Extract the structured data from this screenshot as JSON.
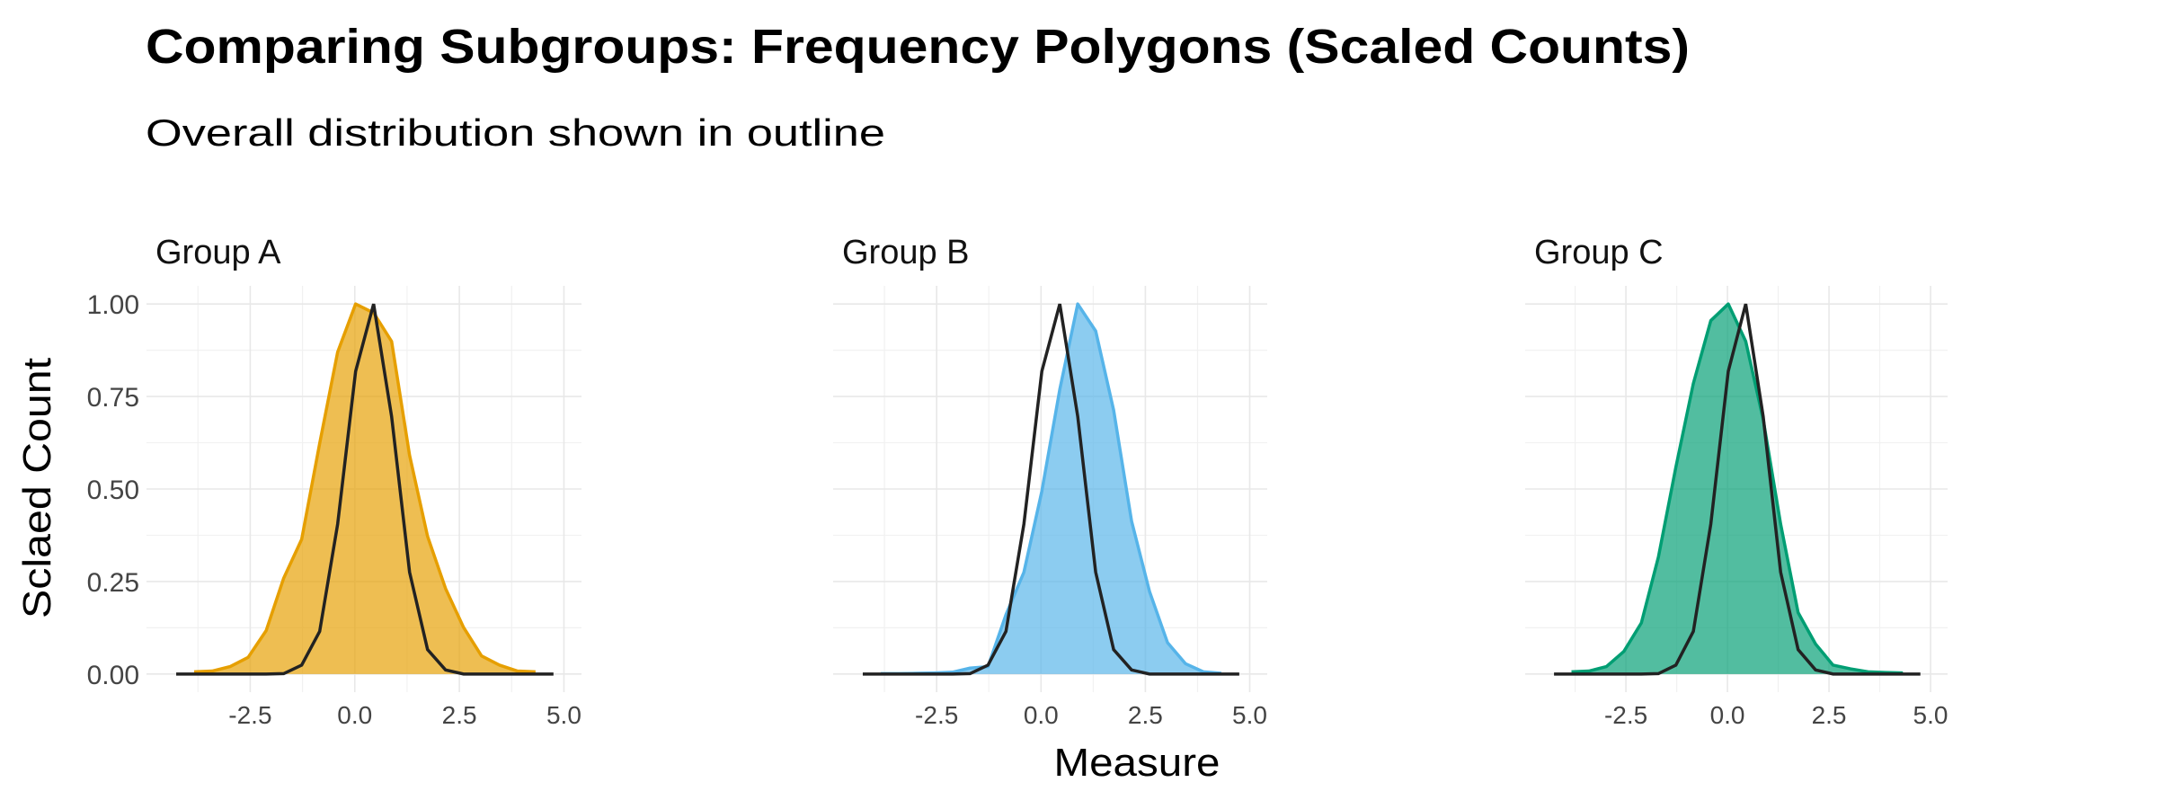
{
  "chart_data": {
    "type": "area",
    "title": "Comparing Subgroups: Frequency Polygons (Scaled Counts)",
    "subtitle": "Overall distribution shown in outline",
    "xlabel": "Measure",
    "ylabel": "Sclaed Count",
    "xlim": [
      -4.98,
      5.42
    ],
    "ylim": [
      -0.049,
      1.049
    ],
    "x_ticks": [
      "-2.5",
      "0.0",
      "2.5",
      "5.0"
    ],
    "x_tick_values": [
      -2.5,
      0,
      2.5,
      5
    ],
    "y_ticks": [
      "0.00",
      "0.25",
      "0.50",
      "0.75",
      "1.00"
    ],
    "y_tick_values": [
      0,
      0.25,
      0.5,
      0.75,
      1
    ],
    "grid": true,
    "x": [
      -4.27,
      -3.84,
      -3.41,
      -2.98,
      -2.55,
      -2.12,
      -1.7,
      -1.27,
      -0.84,
      -0.41,
      0.02,
      0.45,
      0.88,
      1.31,
      1.74,
      2.17,
      2.6,
      3.03,
      3.46,
      3.89,
      4.32,
      4.75
    ],
    "overall": {
      "name": "Overall",
      "color": "#222222",
      "values": [
        0,
        0,
        0,
        0,
        0,
        0,
        0.001,
        0.024,
        0.115,
        0.405,
        0.818,
        1.0,
        0.696,
        0.275,
        0.066,
        0.011,
        0,
        0,
        0,
        0,
        0,
        0
      ]
    },
    "panels": [
      {
        "name": "Group A",
        "color": "#E69F00",
        "values": [
          null,
          0.006,
          0.008,
          0.02,
          0.045,
          0.117,
          0.259,
          0.364,
          0.623,
          0.87,
          1.0,
          0.976,
          0.899,
          0.591,
          0.372,
          0.231,
          0.126,
          0.049,
          0.024,
          0.008,
          0.006,
          null
        ]
      },
      {
        "name": "Group B",
        "color": "#56B4E9",
        "values": [
          null,
          0.001,
          0.001,
          0.002,
          0.003,
          0.005,
          0.016,
          0.02,
          0.16,
          0.275,
          0.494,
          0.769,
          1.0,
          0.927,
          0.713,
          0.413,
          0.223,
          0.085,
          0.028,
          0.006,
          0.002,
          null
        ]
      },
      {
        "name": "Group C",
        "color": "#009E73",
        "values": [
          null,
          0.006,
          0.008,
          0.02,
          0.061,
          0.138,
          0.316,
          0.559,
          0.785,
          0.955,
          1.0,
          0.899,
          0.688,
          0.405,
          0.166,
          0.081,
          0.024,
          0.014,
          0.006,
          0.004,
          0.003,
          null
        ]
      }
    ]
  }
}
